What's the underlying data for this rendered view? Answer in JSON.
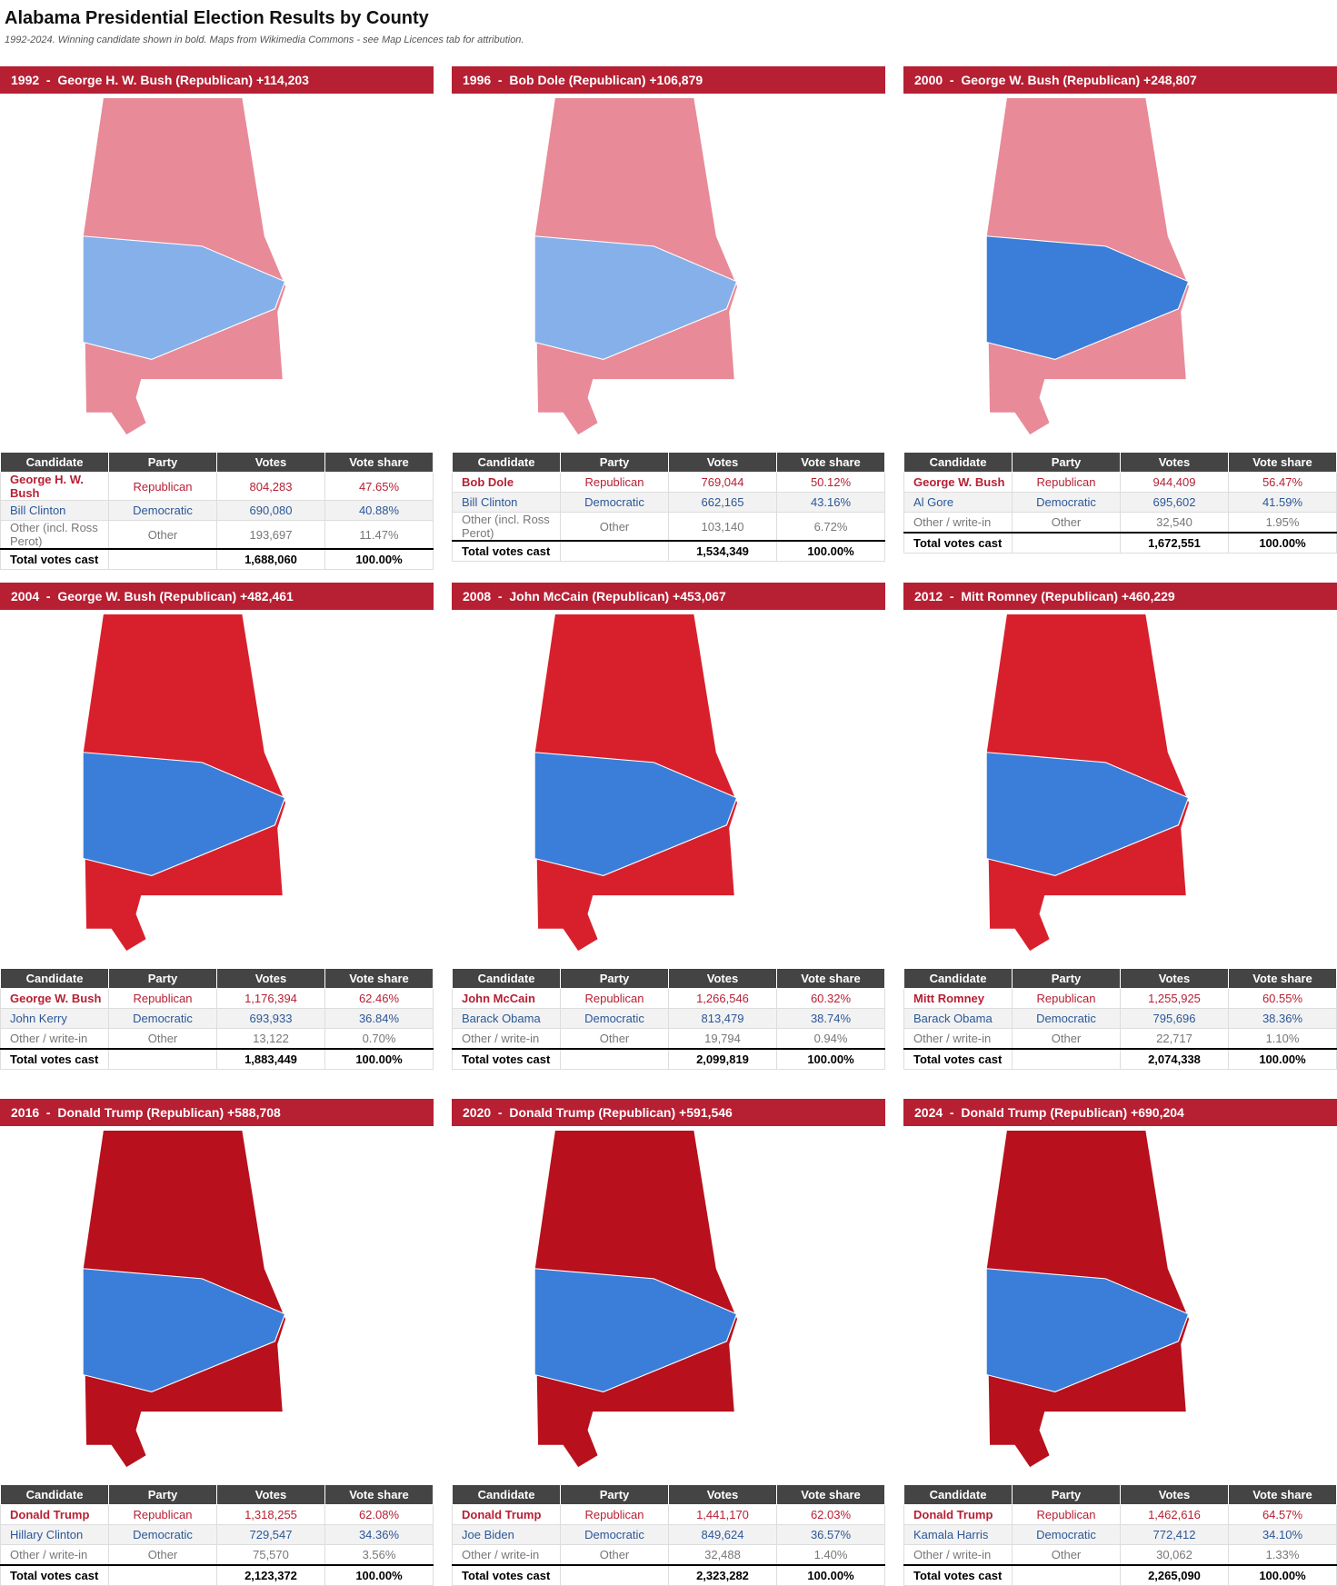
{
  "header": {
    "title": "Alabama Presidential Election Results by County",
    "subtitle": "1992-2024. Winning candidate shown in bold. Maps from Wikimedia Commons - see Map Licences tab for attribution."
  },
  "columns": [
    "Candidate",
    "Party",
    "Votes",
    "Vote share"
  ],
  "panels": [
    {
      "heading": "1992  -  George H. W. Bush (Republican) +114,203",
      "rows": [
        [
          "George H. W. Bush",
          "Republican",
          "804,283",
          "47.65%"
        ],
        [
          "Bill Clinton",
          "Democratic",
          "690,080",
          "40.88%"
        ],
        [
          "Other (incl. Ross Perot)",
          "Other",
          "193,697",
          "11.47%"
        ]
      ],
      "total": {
        "label": "Total votes cast",
        "votes": "1,688,060",
        "share": "100.00%"
      }
    },
    {
      "heading": "1996  -  Bob Dole (Republican) +106,879",
      "rows": [
        [
          "Bob Dole",
          "Republican",
          "769,044",
          "50.12%"
        ],
        [
          "Bill Clinton",
          "Democratic",
          "662,165",
          "43.16%"
        ],
        [
          "Other (incl. Ross Perot)",
          "Other",
          "103,140",
          "6.72%"
        ]
      ],
      "total": {
        "label": "Total votes cast",
        "votes": "1,534,349",
        "share": "100.00%"
      }
    },
    {
      "heading": "2000  -  George W. Bush (Republican) +248,807",
      "rows": [
        [
          "George W. Bush",
          "Republican",
          "944,409",
          "56.47%"
        ],
        [
          "Al Gore",
          "Democratic",
          "695,602",
          "41.59%"
        ],
        [
          "Other / write-in",
          "Other",
          "32,540",
          "1.95%"
        ]
      ],
      "total": {
        "label": "Total votes cast",
        "votes": "1,672,551",
        "share": "100.00%"
      }
    },
    {
      "heading": "2004  -  George W. Bush (Republican) +482,461",
      "rows": [
        [
          "George W. Bush",
          "Republican",
          "1,176,394",
          "62.46%"
        ],
        [
          "John Kerry",
          "Democratic",
          "693,933",
          "36.84%"
        ],
        [
          "Other / write-in",
          "Other",
          "13,122",
          "0.70%"
        ]
      ],
      "total": {
        "label": "Total votes cast",
        "votes": "1,883,449",
        "share": "100.00%"
      }
    },
    {
      "heading": "2008  -  John McCain (Republican) +453,067",
      "rows": [
        [
          "John McCain",
          "Republican",
          "1,266,546",
          "60.32%"
        ],
        [
          "Barack Obama",
          "Democratic",
          "813,479",
          "38.74%"
        ],
        [
          "Other / write-in",
          "Other",
          "19,794",
          "0.94%"
        ]
      ],
      "total": {
        "label": "Total votes cast",
        "votes": "2,099,819",
        "share": "100.00%"
      }
    },
    {
      "heading": "2012  -  Mitt Romney (Republican) +460,229",
      "rows": [
        [
          "Mitt Romney",
          "Republican",
          "1,255,925",
          "60.55%"
        ],
        [
          "Barack Obama",
          "Democratic",
          "795,696",
          "38.36%"
        ],
        [
          "Other / write-in",
          "Other",
          "22,717",
          "1.10%"
        ]
      ],
      "total": {
        "label": "Total votes cast",
        "votes": "2,074,338",
        "share": "100.00%"
      }
    },
    {
      "heading": "2016  -  Donald Trump (Republican) +588,708",
      "rows": [
        [
          "Donald Trump",
          "Republican",
          "1,318,255",
          "62.08%"
        ],
        [
          "Hillary Clinton",
          "Democratic",
          "729,547",
          "34.36%"
        ],
        [
          "Other / write-in",
          "Other",
          "75,570",
          "3.56%"
        ]
      ],
      "total": {
        "label": "Total votes cast",
        "votes": "2,123,372",
        "share": "100.00%"
      }
    },
    {
      "heading": "2020  -  Donald Trump (Republican) +591,546",
      "rows": [
        [
          "Donald Trump",
          "Republican",
          "1,441,170",
          "62.03%"
        ],
        [
          "Joe Biden",
          "Democratic",
          "849,624",
          "36.57%"
        ],
        [
          "Other / write-in",
          "Other",
          "32,488",
          "1.40%"
        ]
      ],
      "total": {
        "label": "Total votes cast",
        "votes": "2,323,282",
        "share": "100.00%"
      }
    },
    {
      "heading": "2024  -  Donald Trump (Republican) +690,204",
      "rows": [
        [
          "Donald Trump",
          "Republican",
          "1,462,616",
          "64.57%"
        ],
        [
          "Kamala Harris",
          "Democratic",
          "772,412",
          "34.10%"
        ],
        [
          "Other / write-in",
          "Other",
          "30,062",
          "1.33%"
        ]
      ],
      "total": {
        "label": "Total votes cast",
        "votes": "2,265,090",
        "share": "100.00%"
      }
    }
  ]
}
